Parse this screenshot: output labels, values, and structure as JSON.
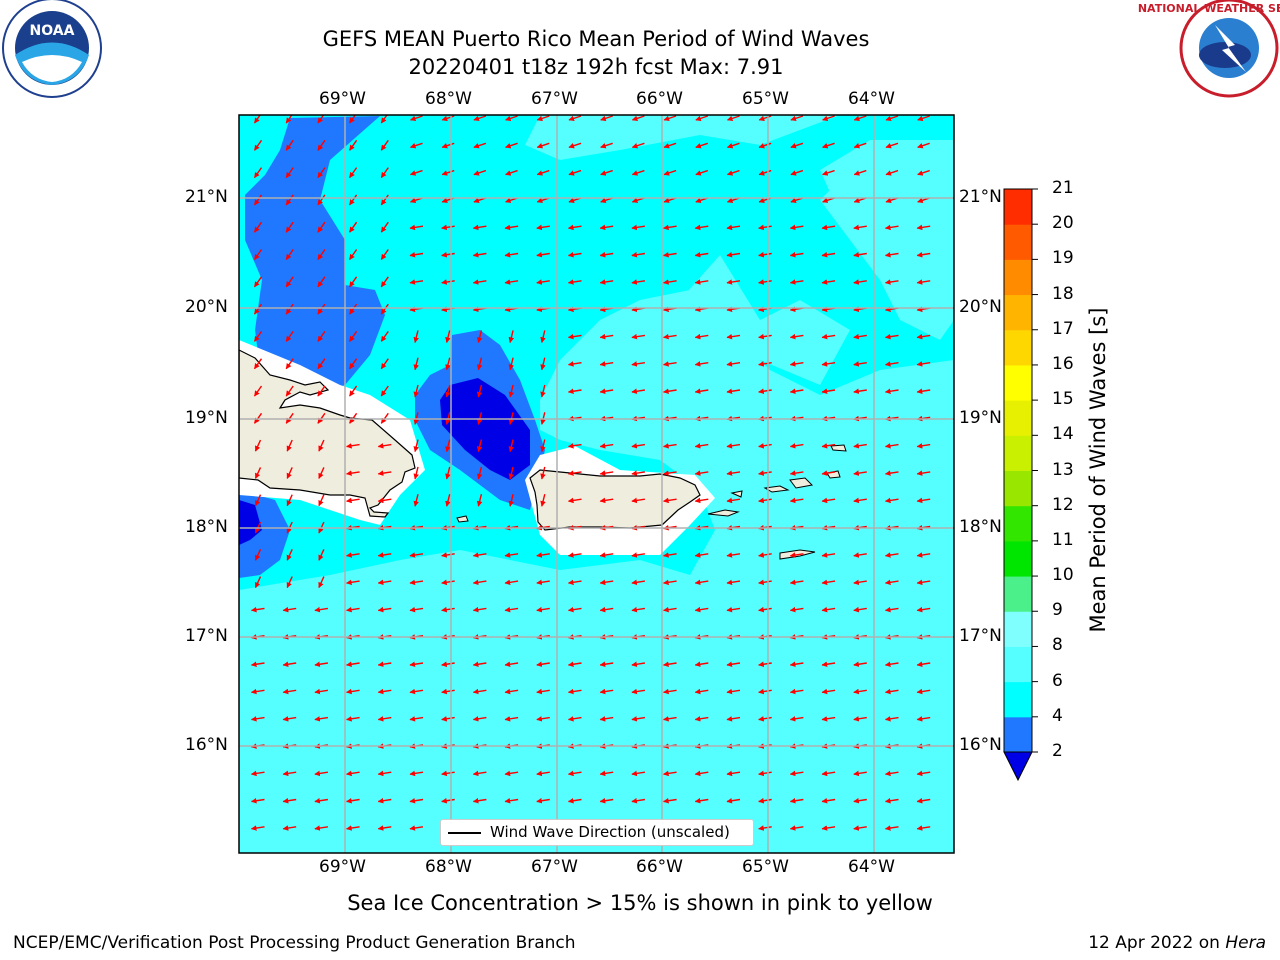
{
  "title": {
    "line1": "GEFS MEAN Puerto Rico Mean Period of Wind Waves",
    "line2": "20220401 t18z 192h fcst   Max: 7.91"
  },
  "map": {
    "lon_ticks": [
      "69°W",
      "68°W",
      "67°W",
      "66°W",
      "65°W",
      "64°W"
    ],
    "lat_ticks": [
      "21°N",
      "20°N",
      "19°N",
      "18°N",
      "17°N",
      "16°N"
    ],
    "lon_range": [
      -70.0,
      -63.25
    ],
    "lat_range": [
      15.0,
      21.75
    ],
    "grid": true,
    "field_colors": {
      "ocean_light": "#55ffff",
      "ocean_mid": "#00ffff",
      "ocean_pale": "#80ffff",
      "period_2_4": "#1f78ff",
      "period_below_2": "#0000e6",
      "land": "#efedde",
      "arrows": "#ff0000"
    },
    "legend_label": "Wind Wave Direction (unscaled)"
  },
  "colorbar": {
    "label": "Mean Period of Wind Waves [s]",
    "ticks": [
      "2",
      "4",
      "6",
      "8",
      "9",
      "10",
      "11",
      "12",
      "13",
      "14",
      "15",
      "16",
      "17",
      "18",
      "19",
      "20",
      "21"
    ],
    "colors": [
      "#1f78ff",
      "#00ffff",
      "#55ffff",
      "#80ffff",
      "#4cf08a",
      "#00e600",
      "#33e600",
      "#99e600",
      "#c8f000",
      "#e6f000",
      "#ffff00",
      "#ffd700",
      "#ffb400",
      "#ff8c00",
      "#ff5a00",
      "#ff2d00",
      "#ff0000"
    ],
    "under_color": "#0000e6"
  },
  "footer": {
    "note": "Sea Ice Concentration > 15% is shown in pink to yellow",
    "credit": "NCEP/EMC/Verification Post Processing Product Generation Branch",
    "date_prefix": "12 Apr 2022 on",
    "machine": "Hera"
  },
  "logos": {
    "left": "noaa-logo",
    "left_text": "NOAA",
    "right": "nws-logo",
    "right_text": "NATIONAL WEATHER SERVICE"
  }
}
